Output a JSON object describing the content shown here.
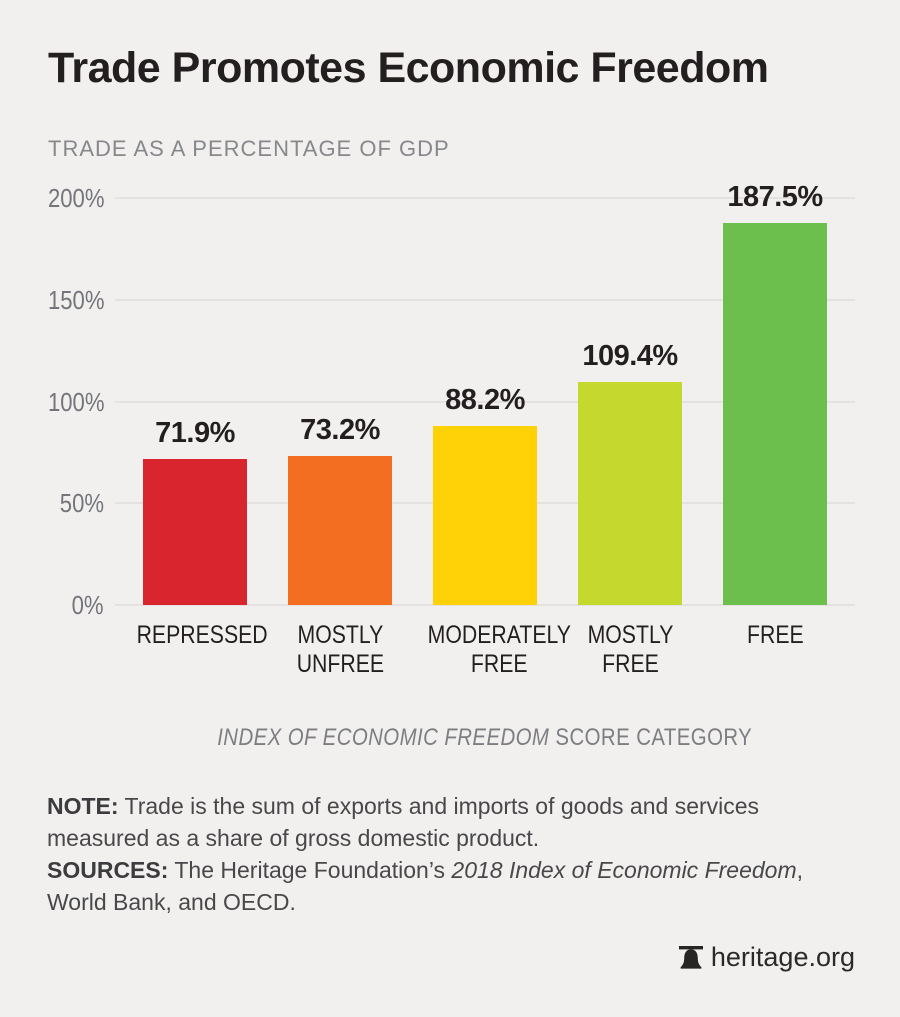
{
  "page": {
    "title": "Trade Promotes Economic Freedom",
    "subtitle": "TRADE AS A PERCENTAGE OF GDP"
  },
  "chart_data": {
    "type": "bar",
    "title": "Trade Promotes Economic Freedom",
    "subtitle": "TRADE AS A PERCENTAGE OF GDP",
    "categories": [
      "REPRESSED",
      "MOSTLY UNFREE",
      "MODERATELY FREE",
      "MOSTLY FREE",
      "FREE"
    ],
    "values": [
      71.9,
      73.2,
      88.2,
      109.4,
      187.5
    ],
    "value_labels": [
      "71.9%",
      "73.2%",
      "88.2%",
      "109.4%",
      "187.5%"
    ],
    "bar_colors": [
      "#d9262e",
      "#f36e21",
      "#ffd208",
      "#c4d82e",
      "#6cbf4c"
    ],
    "ylim": [
      0,
      200
    ],
    "yticks": [
      200,
      150,
      100,
      50,
      0
    ],
    "ytick_labels": [
      "200%",
      "150%",
      "100%",
      "50%",
      "0%"
    ],
    "grid": true,
    "legend": "none",
    "xlabel_italic": "INDEX OF ECONOMIC FREEDOM",
    "xlabel_regular": " SCORE CATEGORY"
  },
  "notes": {
    "note_label": "NOTE:",
    "note_text": " Trade is the sum of exports and imports of goods and services measured as a share of gross domestic product.",
    "sources_label": "SOURCES:",
    "sources_prefix": " The Heritage Foundation’s ",
    "sources_italic": "2018 Index of Economic Freedom",
    "sources_suffix": ", World Bank, and OECD."
  },
  "footer": {
    "site": "heritage.org",
    "logo": "liberty-bell-icon"
  }
}
